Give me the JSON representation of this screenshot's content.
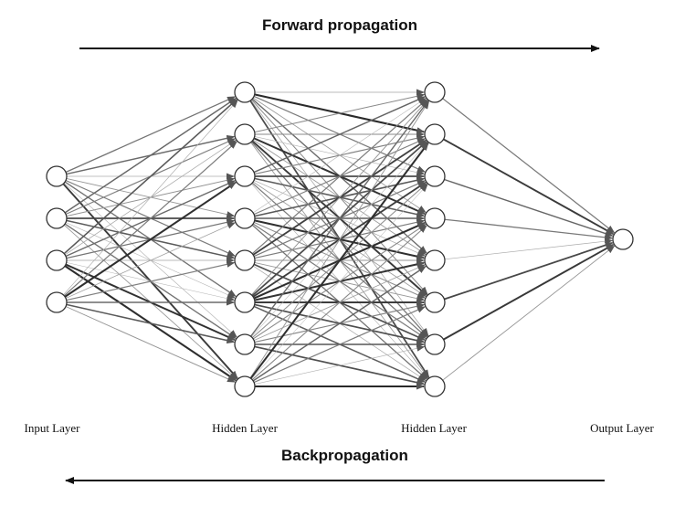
{
  "forward_label": "Forward propagation",
  "backward_label": "Backpropagation",
  "layers": [
    {
      "label": "Input Layer",
      "neurons": 4
    },
    {
      "label": "Hidden Layer",
      "neurons": 8
    },
    {
      "label": "Hidden Layer",
      "neurons": 8
    },
    {
      "label": "Output Layer",
      "neurons": 1
    }
  ],
  "colors": {
    "edge": "#444444",
    "node_stroke": "#333333",
    "node_fill": "#ffffff",
    "arrow": "#111111"
  }
}
